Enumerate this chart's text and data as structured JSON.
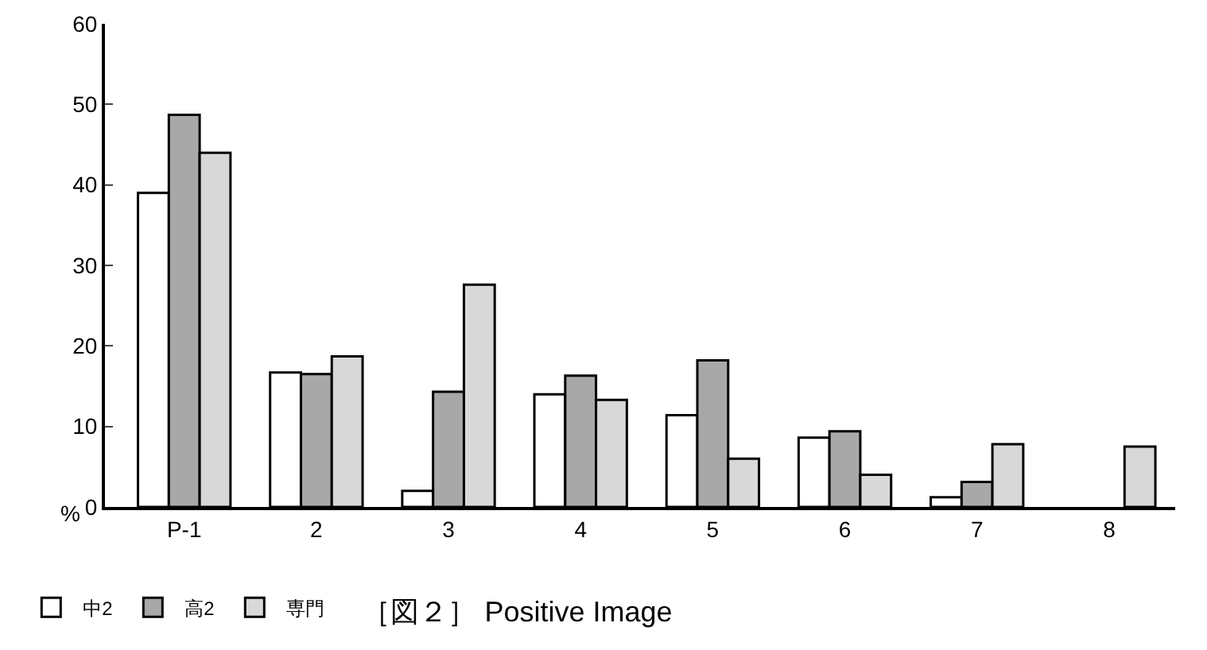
{
  "chart_data": {
    "type": "bar",
    "title": "［図２］ Positive Image",
    "ylabel": "%",
    "categories": [
      "P-1",
      "2",
      "3",
      "4",
      "5",
      "6",
      "7",
      "8"
    ],
    "series": [
      {
        "name": "中2",
        "color": "#ffffff",
        "values": [
          39,
          16.7,
          2,
          14,
          11.4,
          8.6,
          1.2,
          null
        ]
      },
      {
        "name": "高2",
        "color": "#a8a8a8",
        "values": [
          48.7,
          16.5,
          14.3,
          16.3,
          18.2,
          9.4,
          3.1,
          null
        ]
      },
      {
        "name": "専門",
        "color": "#d8d8d8",
        "values": [
          44,
          18.7,
          27.6,
          13.3,
          6,
          4,
          7.8,
          7.5
        ]
      }
    ],
    "ylim": [
      0,
      60
    ],
    "yticks": [
      0,
      10,
      20,
      30,
      40,
      50,
      60
    ],
    "grid": false,
    "legend": "bottom left"
  }
}
